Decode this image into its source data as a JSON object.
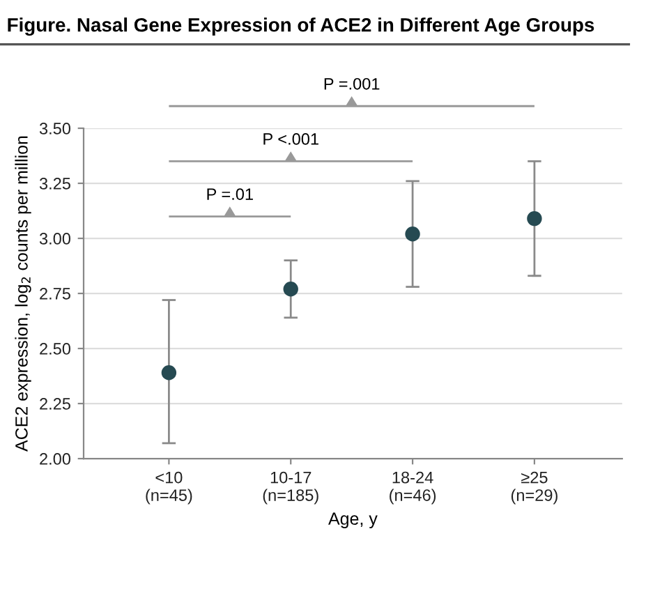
{
  "chart_data": {
    "type": "scatter",
    "title": "Figure. Nasal Gene Expression of ACE2 in Different Age Groups",
    "xlabel": "Age, y",
    "ylabel": "ACE2 expression, log$_{2}$ counts per million",
    "categories": [
      "<10\n(n=45)",
      "10-17\n(n=185)",
      "18-24\n(n=46)",
      "≥25\n(n=29)"
    ],
    "series": [
      {
        "color": "#264a52",
        "values": [
          2.39,
          2.77,
          3.02,
          3.09
        ],
        "errors": [
          [
            2.07,
            2.72
          ],
          [
            2.64,
            2.9
          ],
          [
            2.78,
            3.26
          ],
          [
            2.83,
            3.35
          ]
        ]
      }
    ],
    "ylim": [
      2.0,
      3.5
    ],
    "yticks": [
      {
        "value": 2.0,
        "label": "2.00"
      },
      {
        "value": 2.25,
        "label": "2.25"
      },
      {
        "value": 2.5,
        "label": "2.50"
      },
      {
        "value": 2.75,
        "label": "2.75"
      },
      {
        "value": 3.0,
        "label": "3.00"
      },
      {
        "value": 3.25,
        "label": "3.25"
      },
      {
        "value": 3.5,
        "label": "3.50"
      }
    ],
    "grid": "y",
    "marker": "circle",
    "annotations": [
      "P =.01",
      "P <.001",
      "P =.001"
    ]
  }
}
